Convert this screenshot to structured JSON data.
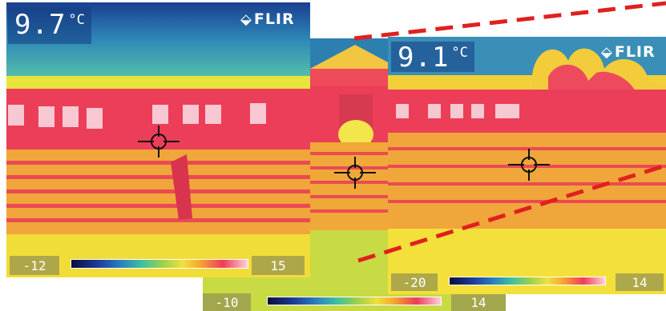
{
  "images": [
    {
      "id": "left",
      "temperature_value": "9.7",
      "temperature_unit": "°C",
      "logo": "FLIR",
      "logo_icon": "flir-diamond-icon",
      "scale_min": "-12",
      "scale_max": "15"
    },
    {
      "id": "middle",
      "scale_min": "-10",
      "scale_max": "14"
    },
    {
      "id": "right",
      "temperature_value": "9.1",
      "temperature_unit": "°C",
      "logo": "FLIR",
      "logo_icon": "flir-diamond-icon",
      "scale_min": "-20",
      "scale_max": "14"
    }
  ],
  "palette_colors": [
    "#0a0f3c",
    "#1d3a9a",
    "#2a7fc0",
    "#3fc0a0",
    "#9ed04a",
    "#f0e040",
    "#f7a530",
    "#ee3b5b",
    "#ffd0dc"
  ],
  "connector_color": "#e02020"
}
